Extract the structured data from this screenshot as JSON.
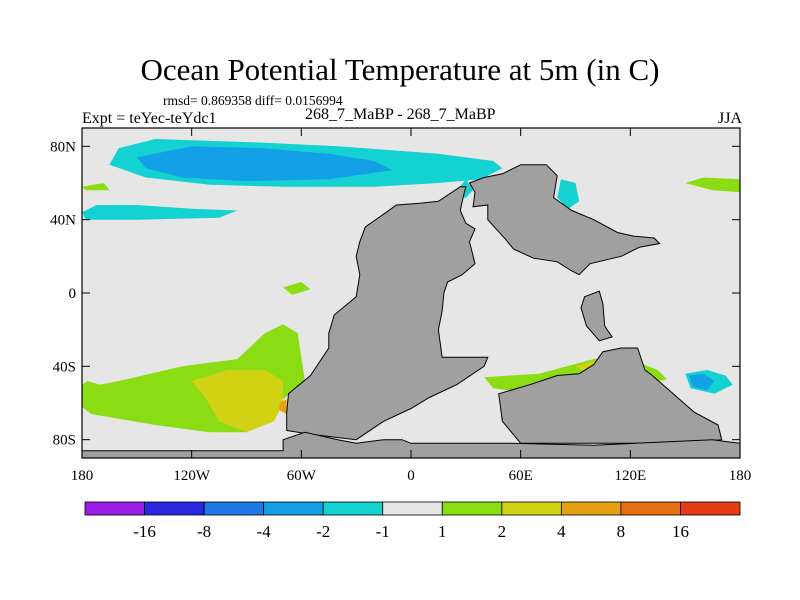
{
  "chart_data": {
    "type": "heatmap",
    "title": "Ocean Potential Temperature at 5m (in C)",
    "stats_line": "rmsd= 0.869358 diff= 0.0156994",
    "left_label": "Expt = teYec-teYdc1",
    "center_label": "268_7_MaBP - 268_7_MaBP",
    "right_label": "JJA",
    "x_range": [
      -180,
      180
    ],
    "y_range": [
      -90,
      90
    ],
    "x_ticks": [
      {
        "label": "180",
        "lon": -180
      },
      {
        "label": "120W",
        "lon": -120
      },
      {
        "label": "60W",
        "lon": -60
      },
      {
        "label": "0",
        "lon": 0
      },
      {
        "label": "60E",
        "lon": 60
      },
      {
        "label": "120E",
        "lon": 120
      },
      {
        "label": "180",
        "lon": 180
      }
    ],
    "y_ticks": [
      {
        "label": "80N",
        "lat": 80
      },
      {
        "label": "40N",
        "lat": 40
      },
      {
        "label": "0",
        "lat": 0
      },
      {
        "label": "40S",
        "lat": -40
      },
      {
        "label": "80S",
        "lat": -80
      }
    ],
    "colorbar": {
      "labels": [
        "-16",
        "-8",
        "-4",
        "-2",
        "-1",
        "1",
        "2",
        "4",
        "8",
        "16"
      ],
      "colors": [
        "#9b1ee6",
        "#2828e0",
        "#1e78e6",
        "#14a0e6",
        "#14d2d2",
        "#e6e6e6",
        "#8cdc14",
        "#d2d214",
        "#e6a014",
        "#e66e14",
        "#e63c14"
      ]
    },
    "land_color": "#a0a0a0",
    "ocean_color": "#e6e6e6",
    "land_polygons": [
      [
        [
          -28,
          28
        ],
        [
          -25,
          36
        ],
        [
          -15,
          43
        ],
        [
          -8,
          48
        ],
        [
          5,
          49
        ],
        [
          15,
          50
        ],
        [
          27,
          58
        ],
        [
          30,
          58
        ],
        [
          28,
          50
        ],
        [
          27,
          45
        ],
        [
          30,
          38
        ],
        [
          35,
          35
        ],
        [
          32,
          28
        ],
        [
          35,
          16
        ],
        [
          28,
          10
        ],
        [
          20,
          6
        ],
        [
          18,
          0
        ],
        [
          17,
          -10
        ],
        [
          15,
          -20
        ],
        [
          17,
          -35
        ],
        [
          30,
          -35
        ],
        [
          42,
          -35
        ],
        [
          40,
          -40
        ],
        [
          25,
          -50
        ],
        [
          10,
          -57
        ],
        [
          0,
          -63
        ],
        [
          -15,
          -70
        ],
        [
          -30,
          -80
        ],
        [
          -55,
          -77
        ],
        [
          -68,
          -75
        ],
        [
          -68,
          -65
        ],
        [
          -67,
          -55
        ],
        [
          -55,
          -45
        ],
        [
          -45,
          -30
        ],
        [
          -45,
          -22
        ],
        [
          -42,
          -12
        ],
        [
          -30,
          -2
        ],
        [
          -28,
          10
        ],
        [
          -30,
          20
        ],
        [
          -28,
          28
        ]
      ],
      [
        [
          32,
          60
        ],
        [
          40,
          63
        ],
        [
          50,
          65
        ],
        [
          60,
          70
        ],
        [
          74,
          70
        ],
        [
          80,
          64
        ],
        [
          78,
          52
        ],
        [
          88,
          45
        ],
        [
          100,
          40
        ],
        [
          113,
          33
        ],
        [
          122,
          31
        ],
        [
          133,
          30
        ],
        [
          136,
          27
        ],
        [
          125,
          25
        ],
        [
          115,
          20
        ],
        [
          98,
          16
        ],
        [
          92,
          10
        ],
        [
          88,
          12
        ],
        [
          80,
          17
        ],
        [
          67,
          19
        ],
        [
          56,
          24
        ],
        [
          52,
          29
        ],
        [
          42,
          40
        ],
        [
          42,
          48
        ],
        [
          34,
          47
        ],
        [
          35,
          55
        ],
        [
          32,
          60
        ]
      ],
      [
        [
          95,
          -2
        ],
        [
          103,
          1
        ],
        [
          105,
          -6
        ],
        [
          106,
          -18
        ],
        [
          110,
          -24
        ],
        [
          103,
          -26
        ],
        [
          96,
          -18
        ],
        [
          93,
          -8
        ],
        [
          95,
          -2
        ]
      ],
      [
        [
          105,
          -32
        ],
        [
          115,
          -30
        ],
        [
          124,
          -30
        ],
        [
          128,
          -42
        ],
        [
          132,
          -45
        ],
        [
          140,
          -52
        ],
        [
          155,
          -65
        ],
        [
          168,
          -72
        ],
        [
          170,
          -80
        ],
        [
          150,
          -82
        ],
        [
          100,
          -82
        ],
        [
          60,
          -82
        ],
        [
          50,
          -70
        ],
        [
          48,
          -55
        ],
        [
          65,
          -50
        ],
        [
          80,
          -45
        ],
        [
          92,
          -44
        ],
        [
          100,
          -39
        ],
        [
          105,
          -32
        ]
      ],
      [
        [
          -180,
          -86
        ],
        [
          -70,
          -86
        ],
        [
          -70,
          -80
        ],
        [
          -58,
          -76
        ],
        [
          -40,
          -80
        ],
        [
          -30,
          -82
        ],
        [
          -15,
          -80
        ],
        [
          -5,
          -80
        ],
        [
          0,
          -82
        ],
        [
          55,
          -82
        ],
        [
          100,
          -83
        ],
        [
          165,
          -80
        ],
        [
          172,
          -81
        ],
        [
          180,
          -82
        ],
        [
          180,
          -90
        ],
        [
          -180,
          -90
        ]
      ]
    ],
    "anomaly_regions": [
      {
        "bin": 4,
        "poly": [
          [
            -160,
            79
          ],
          [
            -140,
            84
          ],
          [
            -80,
            82
          ],
          [
            -40,
            80
          ],
          [
            15,
            76
          ],
          [
            45,
            72
          ],
          [
            50,
            68
          ],
          [
            38,
            62
          ],
          [
            15,
            60
          ],
          [
            -20,
            58
          ],
          [
            -70,
            58
          ],
          [
            -110,
            59
          ],
          [
            -145,
            63
          ],
          [
            -165,
            70
          ]
        ]
      },
      {
        "bin": 3,
        "poly": [
          [
            -150,
            74
          ],
          [
            -120,
            80
          ],
          [
            -80,
            79
          ],
          [
            -45,
            76
          ],
          [
            -20,
            72
          ],
          [
            -10,
            67
          ],
          [
            -45,
            62
          ],
          [
            -90,
            61
          ],
          [
            -125,
            63
          ],
          [
            -145,
            68
          ]
        ]
      },
      {
        "bin": 4,
        "poly": [
          [
            -180,
            44
          ],
          [
            -172,
            48
          ],
          [
            -150,
            48
          ],
          [
            -120,
            46
          ],
          [
            -95,
            45
          ],
          [
            -105,
            41
          ],
          [
            -150,
            40
          ],
          [
            -178,
            40
          ]
        ]
      },
      {
        "bin": 4,
        "poly": [
          [
            82,
            62
          ],
          [
            90,
            60
          ],
          [
            92,
            50
          ],
          [
            86,
            46
          ],
          [
            80,
            52
          ]
        ]
      },
      {
        "bin": 4,
        "poly": [
          [
            26,
            57
          ],
          [
            30,
            62
          ],
          [
            34,
            56
          ],
          [
            30,
            52
          ],
          [
            27,
            52
          ]
        ]
      },
      {
        "bin": 4,
        "poly": [
          [
            -96,
            -44
          ],
          [
            -88,
            -40
          ],
          [
            -82,
            -44
          ],
          [
            -90,
            -48
          ]
        ]
      },
      {
        "bin": 4,
        "poly": [
          [
            150,
            -44
          ],
          [
            162,
            -42
          ],
          [
            172,
            -45
          ],
          [
            176,
            -50
          ],
          [
            166,
            -55
          ],
          [
            153,
            -52
          ]
        ]
      },
      {
        "bin": 3,
        "poly": [
          [
            152,
            -45
          ],
          [
            160,
            -44
          ],
          [
            166,
            -48
          ],
          [
            162,
            -53
          ],
          [
            154,
            -51
          ]
        ]
      },
      {
        "bin": 6,
        "poly": [
          [
            -180,
            -52
          ],
          [
            -160,
            -48
          ],
          [
            -125,
            -40
          ],
          [
            -95,
            -36
          ],
          [
            -80,
            -22
          ],
          [
            -70,
            -17
          ],
          [
            -62,
            -22
          ],
          [
            -60,
            -35
          ],
          [
            -58,
            -48
          ],
          [
            -70,
            -58
          ],
          [
            -80,
            -65
          ],
          [
            -90,
            -76
          ],
          [
            -110,
            -76
          ],
          [
            -140,
            -72
          ],
          [
            -175,
            -66
          ],
          [
            -180,
            -62
          ]
        ]
      },
      {
        "bin": 7,
        "poly": [
          [
            -120,
            -48
          ],
          [
            -100,
            -42
          ],
          [
            -80,
            -42
          ],
          [
            -70,
            -48
          ],
          [
            -70,
            -60
          ],
          [
            -75,
            -70
          ],
          [
            -90,
            -76
          ],
          [
            -105,
            -70
          ],
          [
            -112,
            -58
          ]
        ]
      },
      {
        "bin": 8,
        "poly": [
          [
            -72,
            -60
          ],
          [
            -68,
            -58
          ],
          [
            -68,
            -66
          ],
          [
            -72,
            -64
          ]
        ]
      },
      {
        "bin": 6,
        "poly": [
          [
            -180,
            -50
          ],
          [
            -177,
            -48
          ],
          [
            -170,
            -50
          ],
          [
            -172,
            -60
          ],
          [
            -180,
            -58
          ]
        ]
      },
      {
        "bin": 6,
        "poly": [
          [
            40,
            -46
          ],
          [
            70,
            -44
          ],
          [
            100,
            -36
          ],
          [
            115,
            -34
          ],
          [
            125,
            -38
          ],
          [
            135,
            -42
          ],
          [
            140,
            -47
          ],
          [
            118,
            -52
          ],
          [
            90,
            -54
          ],
          [
            60,
            -54
          ],
          [
            45,
            -52
          ]
        ]
      },
      {
        "bin": 7,
        "poly": [
          [
            90,
            -40
          ],
          [
            105,
            -36
          ],
          [
            118,
            -36
          ],
          [
            126,
            -40
          ],
          [
            118,
            -46
          ],
          [
            100,
            -46
          ]
        ]
      },
      {
        "bin": 8,
        "poly": [
          [
            104,
            -37
          ],
          [
            114,
            -36
          ],
          [
            118,
            -40
          ],
          [
            110,
            -42
          ]
        ]
      },
      {
        "bin": 6,
        "poly": [
          [
            -180,
            58
          ],
          [
            -178,
            56
          ],
          [
            -165,
            56
          ],
          [
            -168,
            60
          ]
        ]
      },
      {
        "bin": 6,
        "poly": [
          [
            -70,
            3
          ],
          [
            -60,
            6
          ],
          [
            -55,
            2
          ],
          [
            -65,
            -1
          ]
        ]
      },
      {
        "bin": 6,
        "poly": [
          [
            150,
            60
          ],
          [
            160,
            63
          ],
          [
            180,
            62
          ],
          [
            180,
            55
          ],
          [
            165,
            56
          ]
        ]
      }
    ]
  }
}
